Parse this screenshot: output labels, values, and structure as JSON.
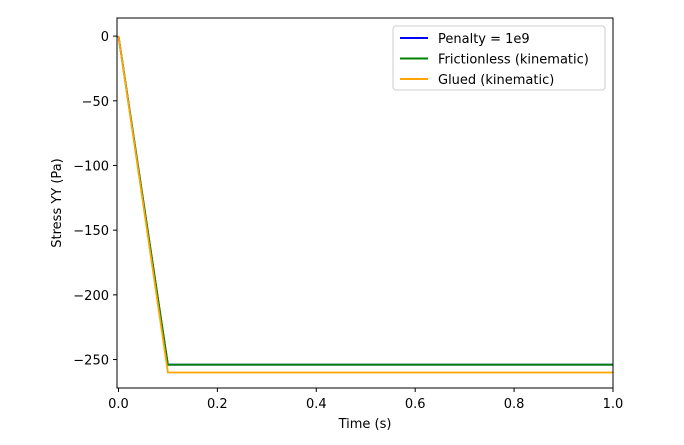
{
  "chart_data": {
    "type": "line",
    "xlabel": "Time (s)",
    "ylabel": "Stress YY (Pa)",
    "xlim": [
      -0.003,
      1.0
    ],
    "ylim": [
      -272,
      14
    ],
    "xticks": [
      0.0,
      0.2,
      0.4,
      0.6,
      0.8,
      1.0
    ],
    "xtick_labels": [
      "0.0",
      "0.2",
      "0.4",
      "0.6",
      "0.8",
      "1.0"
    ],
    "yticks": [
      0,
      -50,
      -100,
      -150,
      -200,
      -250
    ],
    "ytick_labels": [
      "0",
      "−50",
      "−100",
      "−150",
      "−200",
      "−250"
    ],
    "grid": false,
    "legend_position": "top-right",
    "series": [
      {
        "name": "Penalty = 1e9",
        "color": "#0000ff",
        "x": [
          0.0,
          0.1,
          1.0
        ],
        "y": [
          0,
          -254,
          -254
        ]
      },
      {
        "name": "Frictionless (kinematic)",
        "color": "#008000",
        "x": [
          0.0,
          0.1,
          1.0
        ],
        "y": [
          0,
          -254,
          -254
        ]
      },
      {
        "name": "Glued (kinematic)",
        "color": "#ffa500",
        "x": [
          0.0,
          0.1,
          1.0
        ],
        "y": [
          0,
          -260,
          -260
        ]
      }
    ]
  }
}
